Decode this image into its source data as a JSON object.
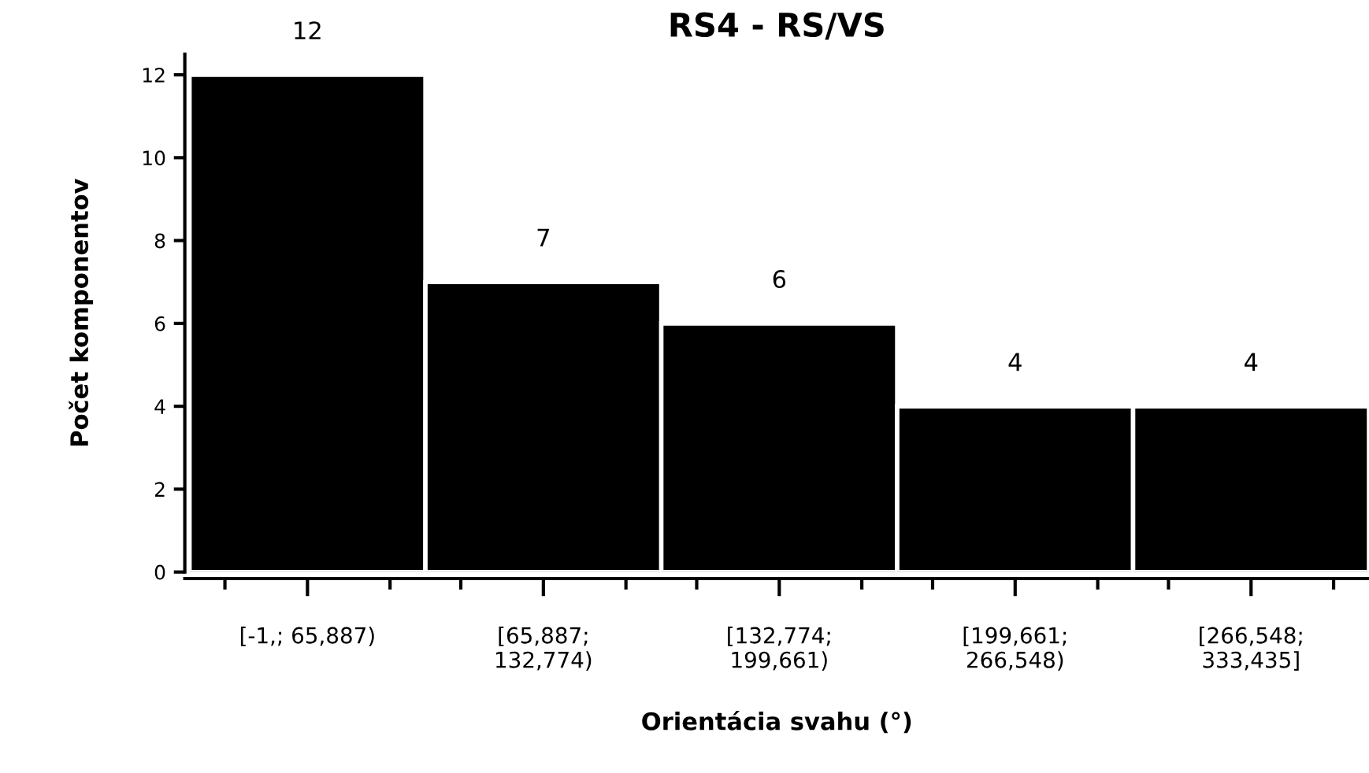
{
  "chart_data": {
    "type": "bar",
    "title": "RS4 - RS/VS",
    "xlabel": "Orientácia svahu (°)",
    "ylabel": "Počet komponentov",
    "categories": [
      "[-1,; 65,887)",
      "[65,887;\n132,774)",
      "[132,774;\n199,661)",
      "[199,661;\n266,548)",
      "[266,548;\n333,435]"
    ],
    "values": [
      12,
      7,
      6,
      4,
      4
    ],
    "color": "#000000",
    "ylim": [
      0,
      12.5
    ],
    "yticks": [
      0,
      2,
      4,
      6,
      8,
      10,
      12
    ],
    "grid": false,
    "data_labels": true
  }
}
